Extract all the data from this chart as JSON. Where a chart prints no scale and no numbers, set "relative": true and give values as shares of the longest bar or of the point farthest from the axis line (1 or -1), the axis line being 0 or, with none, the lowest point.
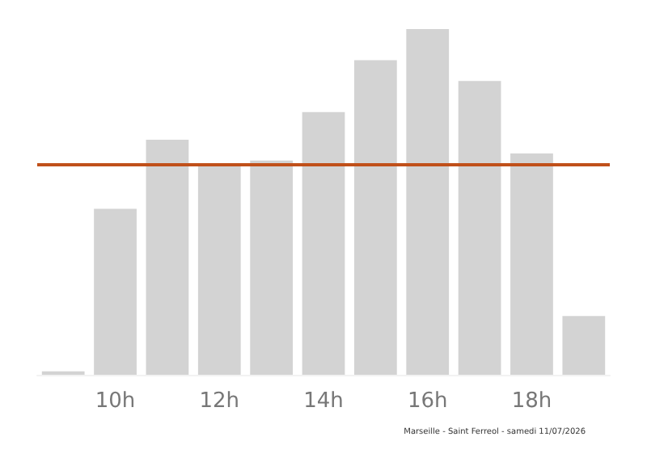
{
  "chart_data": {
    "type": "bar",
    "relative": true,
    "categories": [
      null,
      "10h",
      null,
      "12h",
      null,
      "14h",
      null,
      "16h",
      null,
      "18h",
      null
    ],
    "series": [
      {
        "color": "#d3d3d3",
        "values": [
          0.01,
          0.48,
          0.68,
          0.61,
          0.62,
          0.76,
          0.91,
          1,
          0.85,
          0.64,
          0.17
        ]
      }
    ],
    "ref_lines": [
      {
        "axis": "y",
        "value": 0.61,
        "color": "#c0501a"
      }
    ],
    "annotations": [
      "Marseille - Saint Ferreol - samedi 11/07/2026"
    ],
    "grid": false,
    "legend": false
  }
}
